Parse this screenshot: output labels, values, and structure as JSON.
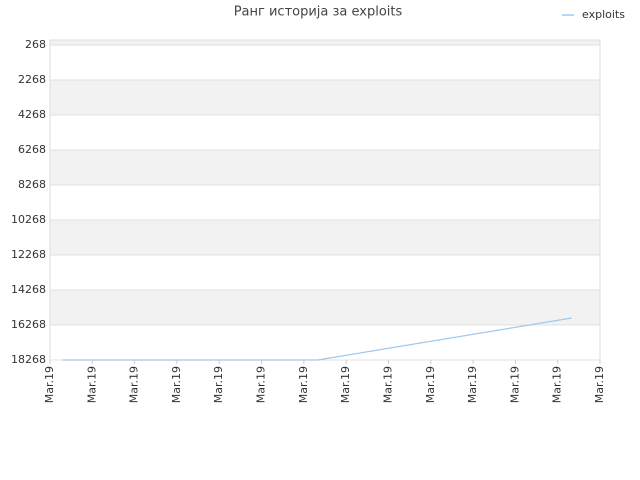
{
  "chart_data": {
    "type": "line",
    "title": "Ранг историја за exploits",
    "x": [
      0.3,
      6.33,
      12.33
    ],
    "series": [
      {
        "name": "exploits",
        "color": "#9ec9f0",
        "values": [
          18268,
          18268,
          15868
        ]
      }
    ],
    "xlim": [
      0,
      13
    ],
    "xticks": [
      {
        "value": 0,
        "label": "Mar.19"
      },
      {
        "value": 1,
        "label": "Mar.19"
      },
      {
        "value": 2,
        "label": "Mar.19"
      },
      {
        "value": 3,
        "label": "Mar.19"
      },
      {
        "value": 4,
        "label": "Mar.19"
      },
      {
        "value": 5,
        "label": "Mar.19"
      },
      {
        "value": 6,
        "label": "Mar.19"
      },
      {
        "value": 7,
        "label": "Mar.19"
      },
      {
        "value": 8,
        "label": "Mar.19"
      },
      {
        "value": 9,
        "label": "Mar.19"
      },
      {
        "value": 10,
        "label": "Mar.19"
      },
      {
        "value": 11,
        "label": "Mar.19"
      },
      {
        "value": 12,
        "label": "Mar.19"
      },
      {
        "value": 13,
        "label": "Mar.19"
      }
    ],
    "ylim": [
      18268,
      268
    ],
    "yticks": [
      268,
      2268,
      4268,
      6268,
      8268,
      10268,
      12268,
      14268,
      16268,
      18268
    ],
    "grid": true,
    "legend": "top-right"
  }
}
